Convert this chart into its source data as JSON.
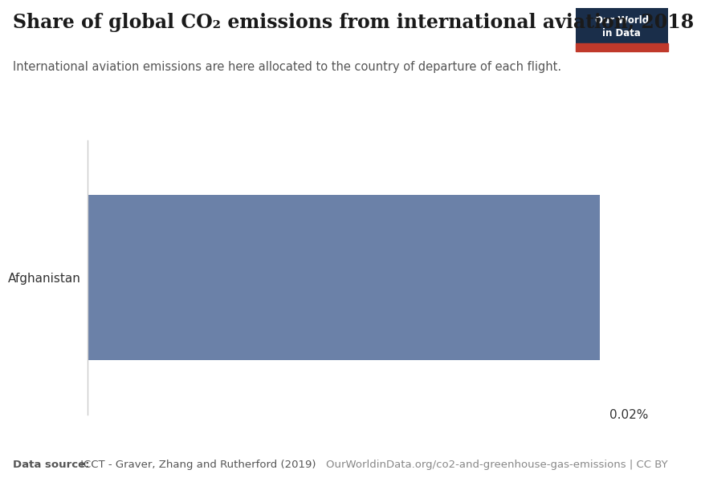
{
  "title": "Share of global CO₂ emissions from international aviation, 2018",
  "subtitle": "International aviation emissions are here allocated to the country of departure of each flight.",
  "country": "Afghanistan",
  "value": 1.0,
  "value_label": "0.02%",
  "bar_color": "#6b81a8",
  "background_color": "#ffffff",
  "data_source_bold": "Data source:",
  "data_source_normal": " ICCT - Graver, Zhang and Rutherford (2019)",
  "url_text": "OurWorldinData.org/co2-and-greenhouse-gas-emissions | CC BY",
  "owid_box_color": "#1a2e4a",
  "owid_red": "#c0392b",
  "title_fontsize": 17,
  "subtitle_fontsize": 10.5,
  "label_fontsize": 11,
  "footer_fontsize": 9.5
}
